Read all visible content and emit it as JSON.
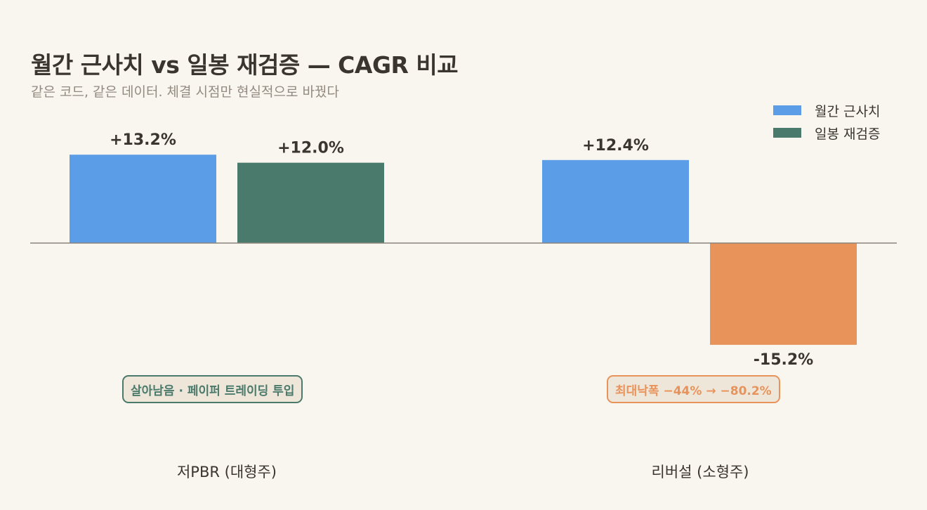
{
  "title": "월간 근사치 vs 일봉 재검증 — CAGR 비교",
  "subtitle": "같은 코드, 같은 데이터. 체결 시점만 현실적으로 바꿨다",
  "legend": {
    "monthly": "월간 근사치",
    "daily": "일봉 재검증"
  },
  "colors": {
    "monthly": "#5b9de6",
    "daily": "#4a7a6b",
    "negative": "#e8935a",
    "axis": "#8a847d",
    "background": "#f9f5ef"
  },
  "annotations": {
    "low_pbr": "살아남음 · 페이퍼 트레이딩 투입",
    "reversal": "최대낙폭 −44% → −80.2%"
  },
  "chart_data": {
    "type": "bar",
    "title": "월간 근사치 vs 일봉 재검증 — CAGR 비교",
    "subtitle": "같은 코드, 같은 데이터. 체결 시점만 현실적으로 바꿨다",
    "categories": [
      "저PBR (대형주)",
      "리버설 (소형주)"
    ],
    "series": [
      {
        "name": "월간 근사치",
        "values": [
          13.2,
          12.4
        ],
        "labels": [
          "+13.2%",
          "+12.4%"
        ]
      },
      {
        "name": "일봉 재검증",
        "values": [
          12.0,
          -15.2
        ],
        "labels": [
          "+12.0%",
          "-15.2%"
        ]
      }
    ],
    "unit": "%",
    "ylim": [
      -21,
      22
    ],
    "grid": false,
    "legend_position": "top-right",
    "zero_line": true
  }
}
